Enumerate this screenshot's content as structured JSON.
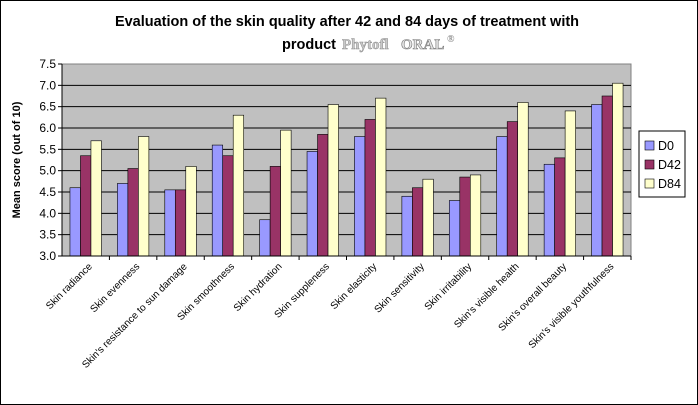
{
  "title": {
    "line1": "Evaluation of the skin quality after 42 and 84 days of treatment with",
    "line2_prefix": "product",
    "logo_part1": "Phytofl",
    "logo_part2": "ORAL",
    "logo_mark": "®"
  },
  "colors": {
    "plot_bg": "#c0c0c0",
    "D0": "#9999ff",
    "D42": "#993366",
    "D84": "#ffffcc"
  },
  "chart_data": {
    "type": "bar",
    "ylabel": "Mean score (out of 10)",
    "xlabel": "",
    "ylim": [
      3.0,
      7.5
    ],
    "yticks": [
      "3.0",
      "3.5",
      "4.0",
      "4.5",
      "5.0",
      "5.5",
      "6.0",
      "6.5",
      "7.0",
      "7.5"
    ],
    "grid": true,
    "legend_position": "right",
    "categories": [
      "Skin radiance",
      "Skin evenness",
      "Skin's resistance to sun damage",
      "Skin smoothness",
      "Skin hydration",
      "Skin suppleness",
      "Skin elasticity",
      "Skin sensitivity",
      "Skin irritability",
      "Skin's visible health",
      "Skin's overall beauty",
      "Skin's visible youthfulness"
    ],
    "series": [
      {
        "name": "D0",
        "values": [
          4.6,
          4.7,
          4.55,
          5.6,
          3.85,
          5.45,
          5.8,
          4.4,
          4.3,
          5.8,
          5.15,
          6.55
        ]
      },
      {
        "name": "D42",
        "values": [
          5.35,
          5.05,
          4.55,
          5.35,
          5.1,
          5.85,
          6.2,
          4.6,
          4.85,
          6.15,
          5.3,
          6.75
        ]
      },
      {
        "name": "D84",
        "values": [
          5.7,
          5.8,
          5.1,
          6.3,
          5.95,
          6.55,
          6.7,
          4.8,
          4.9,
          6.6,
          6.4,
          7.05
        ]
      }
    ]
  }
}
